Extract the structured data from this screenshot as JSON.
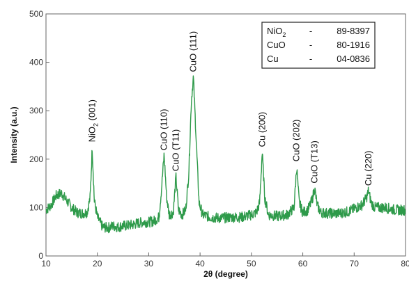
{
  "chart_data": {
    "type": "line",
    "title": "",
    "xlabel": "2θ (degree)",
    "ylabel": "Intensity (a.u.)",
    "xlim": [
      10,
      80
    ],
    "ylim": [
      0,
      500
    ],
    "xticks": [
      10,
      20,
      30,
      40,
      50,
      60,
      70,
      80
    ],
    "yticks": [
      0,
      100,
      200,
      300,
      400,
      500
    ],
    "grid": false,
    "series": [
      {
        "color": "#2e9a4a",
        "x": [
          10,
          11,
          12,
          13,
          14,
          15,
          16,
          17,
          18,
          18.6,
          19.0,
          19.4,
          20,
          21,
          22,
          23,
          24,
          25,
          26,
          27,
          28,
          29,
          30,
          31,
          32,
          32.5,
          33.0,
          33.5,
          34,
          34.8,
          35.3,
          35.8,
          36.5,
          37.2,
          37.8,
          38.3,
          38.7,
          39.2,
          39.8,
          40.5,
          42,
          44,
          46,
          48,
          50,
          51,
          51.6,
          52.1,
          52.6,
          53.3,
          55,
          57,
          58.3,
          58.8,
          59.3,
          60,
          61,
          61.8,
          62.3,
          62.8,
          63.5,
          65,
          67,
          69,
          70.5,
          71.5,
          72.4,
          72.8,
          73.3,
          74,
          76,
          78,
          80
        ],
        "values": [
          95,
          105,
          125,
          130,
          115,
          100,
          90,
          88,
          90,
          120,
          225,
          115,
          80,
          60,
          58,
          62,
          60,
          62,
          63,
          65,
          68,
          70,
          70,
          72,
          80,
          140,
          210,
          120,
          85,
          90,
          165,
          95,
          85,
          95,
          170,
          320,
          370,
          250,
          110,
          85,
          80,
          78,
          80,
          80,
          85,
          90,
          110,
          215,
          120,
          85,
          82,
          85,
          100,
          185,
          110,
          90,
          95,
          115,
          140,
          105,
          90,
          88,
          88,
          92,
          100,
          105,
          120,
          135,
          110,
          100,
          100,
          95,
          95
        ]
      }
    ],
    "annotations": [
      {
        "label": "NiO",
        "sub": "2",
        "suffix": " (001)",
        "x": 19.0,
        "y": 235
      },
      {
        "label": "CuO (110)",
        "sub": "",
        "suffix": "",
        "x": 33.0,
        "y": 218
      },
      {
        "label": "CuO (T11)",
        "sub": "",
        "suffix": "",
        "x": 35.3,
        "y": 175
      },
      {
        "label": "CuO (111)",
        "sub": "",
        "suffix": "",
        "x": 38.7,
        "y": 380
      },
      {
        "label": "Cu (200)",
        "sub": "",
        "suffix": "",
        "x": 52.1,
        "y": 225
      },
      {
        "label": "CuO (202)",
        "sub": "",
        "suffix": "",
        "x": 58.8,
        "y": 195
      },
      {
        "label": "CuO (T13)",
        "sub": "",
        "suffix": "",
        "x": 62.3,
        "y": 150
      },
      {
        "label": "Cu (220)",
        "sub": "",
        "suffix": "",
        "x": 72.8,
        "y": 145
      }
    ],
    "legend": {
      "placement": "top-right",
      "entries": [
        {
          "name": "NiO",
          "sub": "2",
          "dash": "-",
          "code": "89-8397"
        },
        {
          "name": "CuO",
          "sub": "",
          "dash": "-",
          "code": "80-1916"
        },
        {
          "name": "Cu",
          "sub": "",
          "dash": "-",
          "code": "04-0836"
        }
      ]
    }
  }
}
